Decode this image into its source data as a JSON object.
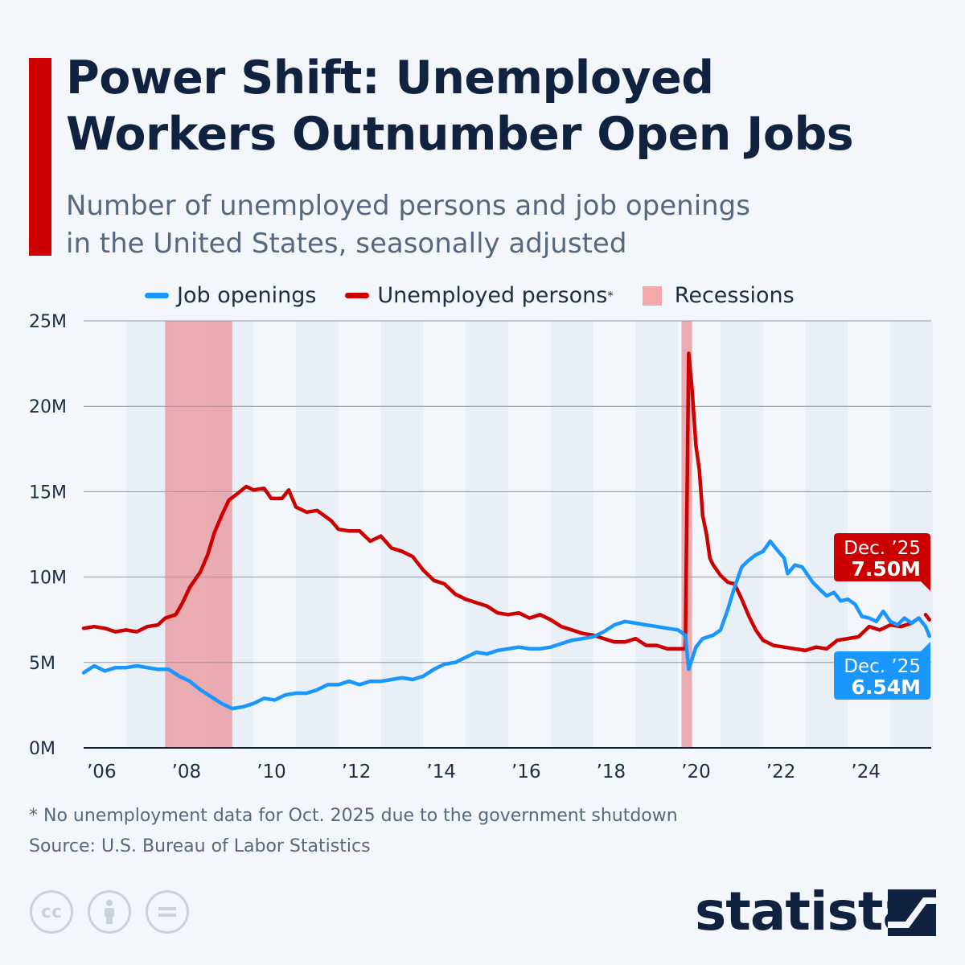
{
  "header": {
    "title_line1": "Power Shift: Unemployed",
    "title_line2": "Workers Outnumber Open Jobs",
    "subtitle_line1": "Number of unemployed persons and job openings",
    "subtitle_line2": "in the United States, seasonally adjusted"
  },
  "footer": {
    "note": "* No unemployment data for Oct. 2025 due to the government shutdown",
    "source": "Source: U.S. Bureau of Labor Statistics",
    "brand": "statista"
  },
  "chart_data": {
    "type": "line",
    "title": "Power Shift: Unemployed Workers Outnumber Open Jobs",
    "xlabel": "",
    "ylabel": "",
    "xlim": [
      2006.0,
      2026.0
    ],
    "ylim": [
      0,
      25
    ],
    "yticks": [
      {
        "v": 0,
        "label": "0M"
      },
      {
        "v": 5,
        "label": "5M"
      },
      {
        "v": 10,
        "label": "10M"
      },
      {
        "v": 15,
        "label": "15M"
      },
      {
        "v": 20,
        "label": "20M"
      },
      {
        "v": 25,
        "label": "25M"
      }
    ],
    "xticks": [
      {
        "v": 2006,
        "label": "’06"
      },
      {
        "v": 2008,
        "label": "’08"
      },
      {
        "v": 2010,
        "label": "’10"
      },
      {
        "v": 2012,
        "label": "’12"
      },
      {
        "v": 2014,
        "label": "’14"
      },
      {
        "v": 2016,
        "label": "’16"
      },
      {
        "v": 2018,
        "label": "’18"
      },
      {
        "v": 2020,
        "label": "’20"
      },
      {
        "v": 2022,
        "label": "’22"
      },
      {
        "v": 2024,
        "label": "’24"
      }
    ],
    "grid": true,
    "legend_position": "top",
    "legend": [
      {
        "label": "Job openings",
        "color": "#1a96ff"
      },
      {
        "label": "Unemployed persons",
        "sup": "*",
        "color": "#cc0000"
      },
      {
        "label": "Recessions",
        "color": "#f4a8a8"
      }
    ],
    "recessions": [
      [
        2007.92,
        2009.5
      ],
      [
        2020.08,
        2020.33
      ]
    ],
    "series": [
      {
        "name": "Unemployed persons",
        "color": "#cc0000",
        "points": [
          [
            2006.0,
            7.0
          ],
          [
            2006.25,
            7.1
          ],
          [
            2006.5,
            7.0
          ],
          [
            2006.75,
            6.8
          ],
          [
            2007.0,
            6.9
          ],
          [
            2007.25,
            6.8
          ],
          [
            2007.5,
            7.1
          ],
          [
            2007.75,
            7.2
          ],
          [
            2007.92,
            7.6
          ],
          [
            2008.17,
            7.8
          ],
          [
            2008.33,
            8.5
          ],
          [
            2008.5,
            9.4
          ],
          [
            2008.75,
            10.3
          ],
          [
            2008.92,
            11.3
          ],
          [
            2009.08,
            12.6
          ],
          [
            2009.25,
            13.6
          ],
          [
            2009.42,
            14.5
          ],
          [
            2009.58,
            14.8
          ],
          [
            2009.83,
            15.3
          ],
          [
            2010.0,
            15.1
          ],
          [
            2010.25,
            15.2
          ],
          [
            2010.42,
            14.6
          ],
          [
            2010.67,
            14.6
          ],
          [
            2010.83,
            15.1
          ],
          [
            2011.0,
            14.1
          ],
          [
            2011.25,
            13.8
          ],
          [
            2011.5,
            13.9
          ],
          [
            2011.83,
            13.3
          ],
          [
            2012.0,
            12.8
          ],
          [
            2012.25,
            12.7
          ],
          [
            2012.5,
            12.7
          ],
          [
            2012.75,
            12.1
          ],
          [
            2013.0,
            12.4
          ],
          [
            2013.25,
            11.7
          ],
          [
            2013.5,
            11.5
          ],
          [
            2013.75,
            11.2
          ],
          [
            2014.0,
            10.4
          ],
          [
            2014.25,
            9.8
          ],
          [
            2014.5,
            9.6
          ],
          [
            2014.75,
            9.0
          ],
          [
            2015.0,
            8.7
          ],
          [
            2015.25,
            8.5
          ],
          [
            2015.5,
            8.3
          ],
          [
            2015.75,
            7.9
          ],
          [
            2016.0,
            7.8
          ],
          [
            2016.25,
            7.9
          ],
          [
            2016.5,
            7.6
          ],
          [
            2016.75,
            7.8
          ],
          [
            2017.0,
            7.5
          ],
          [
            2017.25,
            7.1
          ],
          [
            2017.5,
            6.9
          ],
          [
            2017.75,
            6.7
          ],
          [
            2018.0,
            6.6
          ],
          [
            2018.25,
            6.4
          ],
          [
            2018.5,
            6.2
          ],
          [
            2018.75,
            6.2
          ],
          [
            2019.0,
            6.4
          ],
          [
            2019.25,
            6.0
          ],
          [
            2019.5,
            6.0
          ],
          [
            2019.75,
            5.8
          ],
          [
            2020.0,
            5.8
          ],
          [
            2020.17,
            5.8
          ],
          [
            2020.25,
            23.1
          ],
          [
            2020.33,
            21.0
          ],
          [
            2020.42,
            17.7
          ],
          [
            2020.5,
            16.3
          ],
          [
            2020.58,
            13.6
          ],
          [
            2020.67,
            12.5
          ],
          [
            2020.75,
            11.1
          ],
          [
            2020.83,
            10.7
          ],
          [
            2021.0,
            10.1
          ],
          [
            2021.17,
            9.7
          ],
          [
            2021.33,
            9.6
          ],
          [
            2021.5,
            8.7
          ],
          [
            2021.67,
            7.7
          ],
          [
            2021.83,
            6.9
          ],
          [
            2022.0,
            6.3
          ],
          [
            2022.25,
            6.0
          ],
          [
            2022.5,
            5.9
          ],
          [
            2022.75,
            5.8
          ],
          [
            2023.0,
            5.7
          ],
          [
            2023.25,
            5.9
          ],
          [
            2023.5,
            5.8
          ],
          [
            2023.75,
            6.3
          ],
          [
            2024.0,
            6.4
          ],
          [
            2024.25,
            6.5
          ],
          [
            2024.5,
            7.1
          ],
          [
            2024.75,
            6.9
          ],
          [
            2025.0,
            7.2
          ],
          [
            2025.25,
            7.1
          ],
          [
            2025.5,
            7.3
          ],
          [
            2025.67,
            7.6
          ],
          null,
          [
            2025.83,
            7.8
          ],
          [
            2025.92,
            7.5
          ]
        ]
      },
      {
        "name": "Job openings",
        "color": "#1a96ff",
        "points": [
          [
            2006.0,
            4.4
          ],
          [
            2006.25,
            4.8
          ],
          [
            2006.5,
            4.5
          ],
          [
            2006.75,
            4.7
          ],
          [
            2007.0,
            4.7
          ],
          [
            2007.25,
            4.8
          ],
          [
            2007.5,
            4.7
          ],
          [
            2007.75,
            4.6
          ],
          [
            2008.0,
            4.6
          ],
          [
            2008.25,
            4.2
          ],
          [
            2008.5,
            3.9
          ],
          [
            2008.75,
            3.4
          ],
          [
            2009.0,
            3.0
          ],
          [
            2009.25,
            2.6
          ],
          [
            2009.5,
            2.3
          ],
          [
            2009.75,
            2.4
          ],
          [
            2010.0,
            2.6
          ],
          [
            2010.25,
            2.9
          ],
          [
            2010.5,
            2.8
          ],
          [
            2010.75,
            3.1
          ],
          [
            2011.0,
            3.2
          ],
          [
            2011.25,
            3.2
          ],
          [
            2011.5,
            3.4
          ],
          [
            2011.75,
            3.7
          ],
          [
            2012.0,
            3.7
          ],
          [
            2012.25,
            3.9
          ],
          [
            2012.5,
            3.7
          ],
          [
            2012.75,
            3.9
          ],
          [
            2013.0,
            3.9
          ],
          [
            2013.25,
            4.0
          ],
          [
            2013.5,
            4.1
          ],
          [
            2013.75,
            4.0
          ],
          [
            2014.0,
            4.2
          ],
          [
            2014.25,
            4.6
          ],
          [
            2014.5,
            4.9
          ],
          [
            2014.75,
            5.0
          ],
          [
            2015.0,
            5.3
          ],
          [
            2015.25,
            5.6
          ],
          [
            2015.5,
            5.5
          ],
          [
            2015.75,
            5.7
          ],
          [
            2016.0,
            5.8
          ],
          [
            2016.25,
            5.9
          ],
          [
            2016.5,
            5.8
          ],
          [
            2016.75,
            5.8
          ],
          [
            2017.0,
            5.9
          ],
          [
            2017.25,
            6.1
          ],
          [
            2017.5,
            6.3
          ],
          [
            2017.75,
            6.4
          ],
          [
            2018.0,
            6.5
          ],
          [
            2018.25,
            6.8
          ],
          [
            2018.5,
            7.2
          ],
          [
            2018.75,
            7.4
          ],
          [
            2019.0,
            7.3
          ],
          [
            2019.25,
            7.2
          ],
          [
            2019.5,
            7.1
          ],
          [
            2019.75,
            7.0
          ],
          [
            2020.0,
            6.9
          ],
          [
            2020.17,
            6.6
          ],
          [
            2020.25,
            4.6
          ],
          [
            2020.42,
            5.9
          ],
          [
            2020.58,
            6.4
          ],
          [
            2020.83,
            6.6
          ],
          [
            2021.0,
            6.9
          ],
          [
            2021.17,
            8.1
          ],
          [
            2021.33,
            9.4
          ],
          [
            2021.5,
            10.6
          ],
          [
            2021.67,
            11.0
          ],
          [
            2021.83,
            11.3
          ],
          [
            2022.0,
            11.5
          ],
          [
            2022.17,
            12.1
          ],
          [
            2022.33,
            11.6
          ],
          [
            2022.5,
            11.1
          ],
          [
            2022.58,
            10.2
          ],
          [
            2022.75,
            10.7
          ],
          [
            2022.92,
            10.6
          ],
          [
            2023.17,
            9.7
          ],
          [
            2023.33,
            9.3
          ],
          [
            2023.5,
            8.9
          ],
          [
            2023.67,
            9.1
          ],
          [
            2023.83,
            8.6
          ],
          [
            2024.0,
            8.7
          ],
          [
            2024.17,
            8.4
          ],
          [
            2024.33,
            7.7
          ],
          [
            2024.5,
            7.6
          ],
          [
            2024.67,
            7.4
          ],
          [
            2024.83,
            8.0
          ],
          [
            2025.0,
            7.4
          ],
          [
            2025.17,
            7.2
          ],
          [
            2025.33,
            7.6
          ],
          [
            2025.5,
            7.3
          ],
          [
            2025.67,
            7.6
          ],
          [
            2025.83,
            7.1
          ],
          [
            2025.92,
            6.54
          ]
        ]
      }
    ],
    "annotations": [
      {
        "series": "Unemployed persons",
        "date": "Dec. ’25",
        "value": "7.50M",
        "color": "#cc0000"
      },
      {
        "series": "Job openings",
        "date": "Dec. ’25",
        "value": "6.54M",
        "color": "#1a96ff"
      }
    ]
  }
}
